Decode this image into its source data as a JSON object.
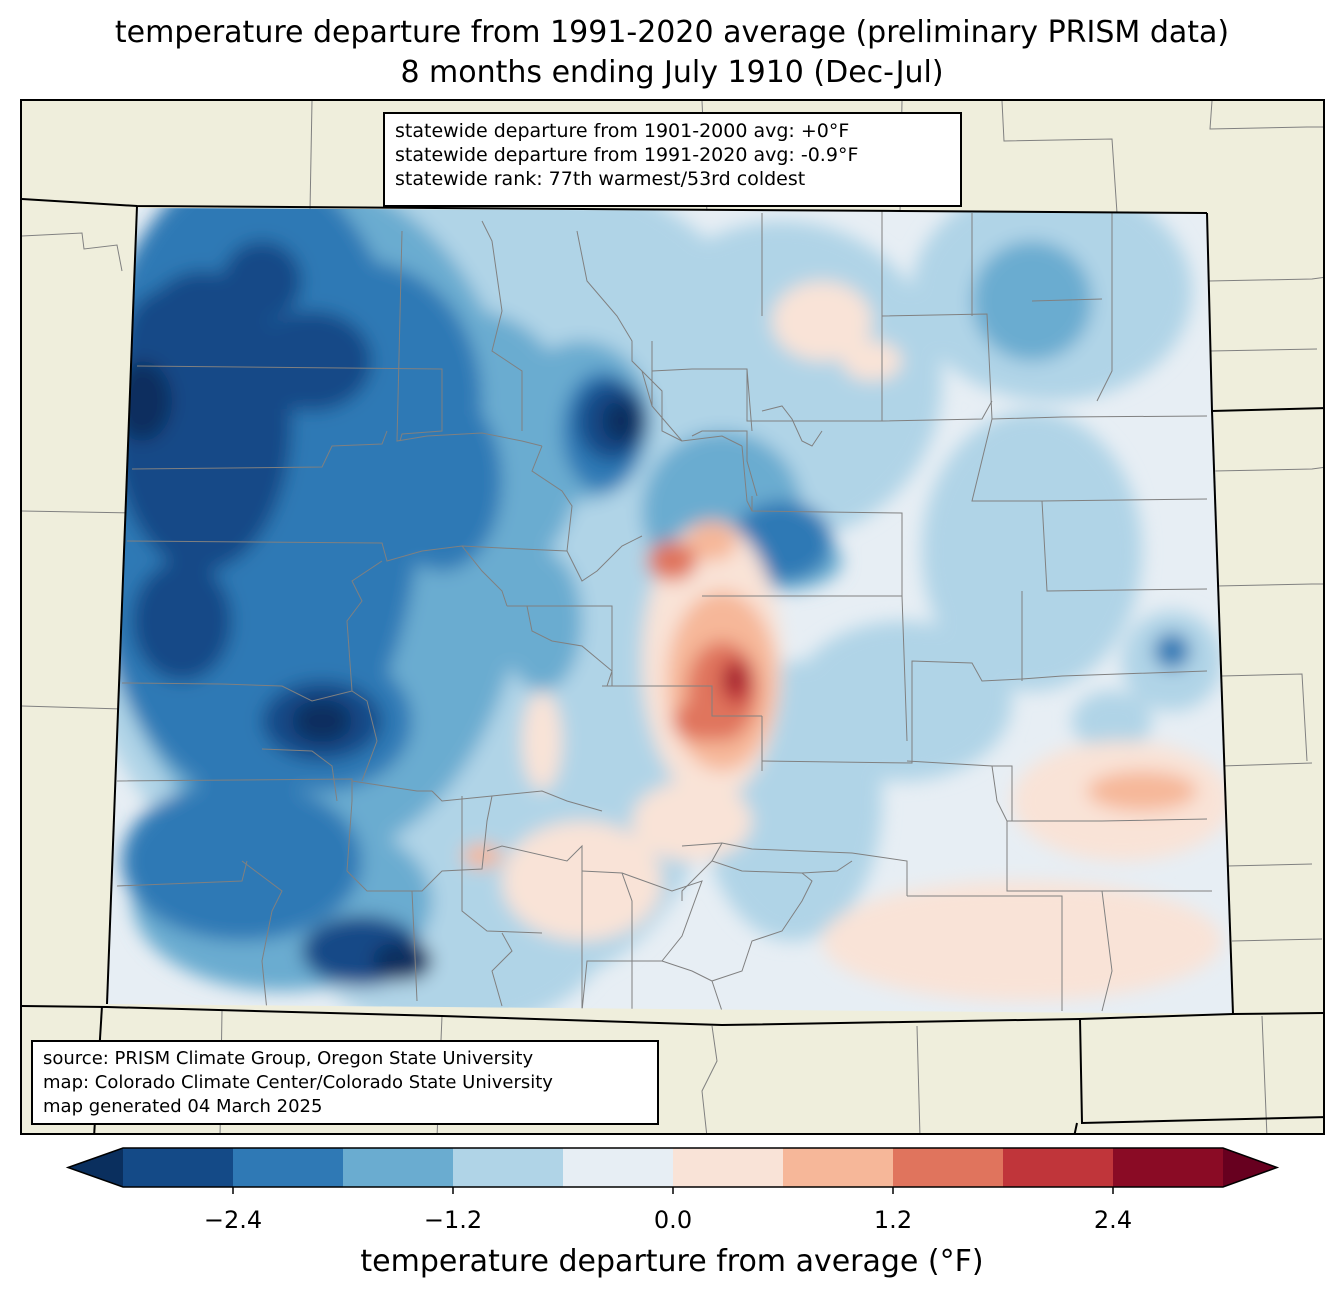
{
  "title": {
    "line1": "temperature departure from 1991-2020 average (preliminary PRISM data)",
    "line2": "8 months ending July 1910 (Dec-Jul)"
  },
  "stats": {
    "line1": "statewide departure from 1901-2000 avg: +0°F",
    "line2": "statewide departure from 1991-2020 avg: -0.9°F",
    "line3": "statewide rank: 77th warmest/53rd coldest"
  },
  "source": {
    "line1": "source: PRISM Climate Group, Oregon State University",
    "line2": "map: Colorado Climate Center/Colorado State University",
    "line3": "map generated 04 March 2025"
  },
  "colorbar": {
    "label": "temperature departure from average (°F)",
    "ticks": [
      "−2.4",
      "−1.2",
      "0.0",
      "1.2",
      "2.4"
    ],
    "levels": [
      -3.0,
      -2.4,
      -1.8,
      -1.2,
      -0.6,
      0.0,
      0.6,
      1.2,
      1.8,
      2.4,
      3.0
    ],
    "colors": [
      "#144a87",
      "#2f79b5",
      "#6aacd0",
      "#b0d4e7",
      "#e7eef4",
      "#f9e3d7",
      "#f6b799",
      "#e0745d",
      "#c0353a",
      "#8a0b25"
    ],
    "under_color": "#0a2f5e",
    "over_color": "#67001f"
  },
  "colors": {
    "land": "#efeedc",
    "border_state": "#000000",
    "border_county": "#808080"
  }
}
